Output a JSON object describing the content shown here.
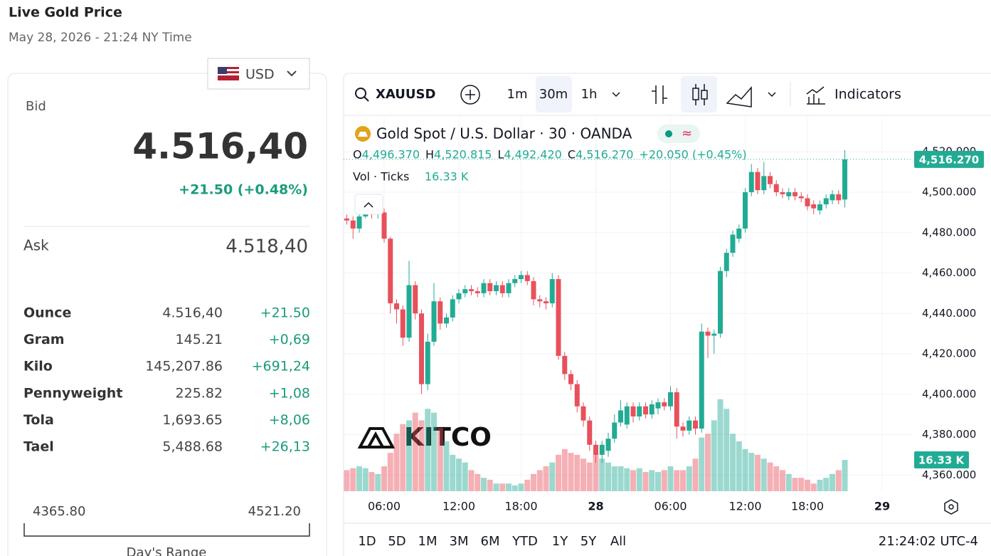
{
  "header": {
    "title": "Live Gold Price",
    "subtitle": "May 28, 2026 - 21:24 NY Time"
  },
  "panel": {
    "currency": "USD",
    "bid_label": "Bid",
    "bid": "4.516,40",
    "change": "+21.50 (+0.48%)",
    "ask_label": "Ask",
    "ask": "4.518,40",
    "rows": [
      [
        "Ounce",
        "4.516,40",
        "+21.50"
      ],
      [
        "Gram",
        "145.21",
        "+0,69"
      ],
      [
        "Kilo",
        "145,207.86",
        "+691,24"
      ],
      [
        "Pennyweight",
        "225.82",
        "+1,08"
      ],
      [
        "Tola",
        "1,693.65",
        "+8,06"
      ],
      [
        "Tael",
        "5,488.68",
        "+26,13"
      ]
    ],
    "range_low": "4365.80",
    "range_high": "4521.20",
    "range_label": "Day's Range"
  },
  "toolbar": {
    "symbol": "XAUUSD",
    "intervals": [
      "1m",
      "30m",
      "1h"
    ],
    "indicators": "Indicators"
  },
  "chart_data": {
    "type": "candlestick",
    "title": "Gold Spot / U.S. Dollar · 30 · OANDA",
    "ohlc_legend": [
      {
        "key": "O",
        "value": "4,496.370"
      },
      {
        "key": "H",
        "value": "4,520.815"
      },
      {
        "key": "L",
        "value": "4,492.420"
      },
      {
        "key": "C",
        "value": "4,516.270"
      }
    ],
    "change_label": "+20.050 (+0.45%)",
    "volume_title": "Vol · Ticks",
    "volume_label": "16.33 K",
    "watermark": "KITCO",
    "categories": [
      null,
      null,
      null,
      null,
      null,
      null,
      "06:00",
      null,
      null,
      null,
      null,
      null,
      null,
      null,
      null,
      null,
      null,
      null,
      "12:00",
      null,
      null,
      null,
      null,
      null,
      null,
      null,
      null,
      null,
      "18:00",
      null,
      null,
      null,
      null,
      null,
      null,
      null,
      null,
      null,
      null,
      null,
      "28",
      null,
      null,
      null,
      null,
      null,
      null,
      null,
      null,
      null,
      null,
      null,
      "06:00",
      null,
      null,
      null,
      null,
      null,
      null,
      null,
      null,
      null,
      null,
      null,
      "12:00",
      null,
      null,
      null,
      null,
      null,
      null,
      null,
      null,
      null,
      "18:00",
      null,
      null,
      null,
      null,
      null,
      null,
      null,
      null,
      null,
      null,
      null,
      "29"
    ],
    "open": [
      4487,
      4486,
      4482,
      4488,
      4490,
      4489,
      4490,
      4477,
      4445,
      4442,
      4428,
      4454,
      4440,
      4405,
      4426,
      4446,
      4435,
      4438,
      4447,
      4450,
      4452,
      4451,
      4450,
      4455,
      4451,
      4454,
      4450,
      4455,
      4457,
      4459,
      4456,
      4447,
      4446,
      4445,
      4457,
      4419,
      4410,
      4405,
      4394,
      4387,
      4375,
      4370,
      4372,
      4378,
      4386,
      4385,
      4394,
      4389,
      4394,
      4390,
      4393,
      4396,
      4394,
      4401,
      4384,
      4382,
      4387,
      4383,
      4431,
      4429,
      4430,
      4461,
      4470,
      4477,
      4482,
      4500,
      4510,
      4501,
      4508,
      4504,
      4500,
      4498,
      4500,
      4498,
      4497,
      4494,
      4491,
      4494,
      4496,
      4499,
      4496.37,
      null,
      null,
      null,
      null,
      null,
      null
    ],
    "high": [
      4489,
      4488,
      4490,
      4492,
      4492,
      4492,
      4492,
      4478,
      4447,
      4444,
      4466,
      4456,
      4442,
      4430,
      4455,
      4448,
      4440,
      4449,
      4452,
      4454,
      4454,
      4453,
      4457,
      4457,
      4456,
      4456,
      4457,
      4459,
      4461,
      4461,
      4458,
      4449,
      4448,
      4460,
      4459,
      4421,
      4412,
      4407,
      4396,
      4389,
      4377,
      4377,
      4381,
      4390,
      4397,
      4396,
      4396,
      4396,
      4396,
      4397,
      4398,
      4398,
      4404,
      4403,
      4386,
      4389,
      4389,
      4435,
      4433,
      4432,
      4463,
      4472,
      4481,
      4484,
      4502,
      4514,
      4512,
      4515,
      4510,
      4506,
      4502,
      4502,
      4502,
      4500,
      4499,
      4496,
      4496,
      4499,
      4501,
      4501,
      4520.815,
      null,
      null,
      null,
      null,
      null,
      null
    ],
    "low": [
      4484,
      4477,
      4480,
      4487,
      4487,
      4487,
      4475,
      4440,
      4435,
      4424,
      4426,
      4437,
      4400,
      4402,
      4424,
      4432,
      4433,
      4436,
      4445,
      4448,
      4449,
      4448,
      4448,
      4449,
      4449,
      4448,
      4448,
      4453,
      4455,
      4454,
      4444,
      4443,
      4442,
      4443,
      4417,
      4407,
      4402,
      4391,
      4384,
      4372,
      4366,
      4366,
      4369,
      4376,
      4384,
      4383,
      4386,
      4387,
      4388,
      4388,
      4390,
      4392,
      4392,
      4378,
      4379,
      4380,
      4380,
      4381,
      4418,
      4420,
      4428,
      4458,
      4468,
      4475,
      4480,
      4498,
      4499,
      4499,
      4502,
      4498,
      4497,
      4496,
      4496,
      4495,
      4491,
      4489,
      4489,
      4492,
      4494,
      4494,
      4492.42,
      null,
      null,
      null,
      null,
      null,
      null
    ],
    "close": [
      4486,
      4482,
      4488,
      4490,
      4489,
      4490,
      4477,
      4445,
      4442,
      4428,
      4454,
      4440,
      4405,
      4426,
      4446,
      4435,
      4438,
      4447,
      4450,
      4452,
      4451,
      4450,
      4455,
      4451,
      4454,
      4450,
      4455,
      4457,
      4459,
      4456,
      4447,
      4446,
      4445,
      4457,
      4419,
      4410,
      4405,
      4394,
      4387,
      4375,
      4370,
      4375,
      4378,
      4386,
      4392,
      4394,
      4389,
      4394,
      4390,
      4395,
      4396,
      4394,
      4401,
      4384,
      4382,
      4387,
      4383,
      4431,
      4429,
      4430,
      4461,
      4470,
      4479,
      4482,
      4500,
      4510,
      4501,
      4508,
      4504,
      4500,
      4499,
      4500,
      4498,
      4497,
      4493,
      4492,
      4494,
      4497,
      4499,
      4496,
      4516.27,
      null,
      null,
      null,
      null,
      null,
      null
    ],
    "volume": [
      11,
      12,
      13,
      12,
      10,
      9,
      13,
      20,
      30,
      35,
      37,
      41,
      37,
      43,
      41,
      33,
      26,
      19,
      17,
      15,
      11,
      9,
      7,
      6,
      4,
      4,
      4,
      3,
      4,
      6,
      9,
      11,
      13,
      15,
      19,
      22,
      20,
      19,
      17,
      15,
      19,
      17,
      15,
      13,
      13,
      12,
      11,
      12,
      10,
      11,
      10,
      11,
      13,
      11,
      11,
      13,
      17,
      28,
      30,
      37,
      48,
      43,
      30,
      26,
      22,
      20,
      19,
      17,
      15,
      13,
      11,
      9,
      7,
      7,
      6,
      4,
      6,
      7,
      9,
      11,
      16.33,
      null,
      null,
      null,
      null,
      null,
      null
    ],
    "ylim": [
      4352,
      4537
    ],
    "yticks": [
      {
        "value": 4360,
        "label": "4,360.000"
      },
      {
        "value": 4380,
        "label": "4,380.000"
      },
      {
        "value": 4400,
        "label": "4,400.000"
      },
      {
        "value": 4420,
        "label": "4,420.000"
      },
      {
        "value": 4440,
        "label": "4,440.000"
      },
      {
        "value": 4460,
        "label": "4,460.000"
      },
      {
        "value": 4480,
        "label": "4,480.000"
      },
      {
        "value": 4500,
        "label": "4,500.000"
      },
      {
        "value": 4520,
        "label": "4,520.000"
      }
    ],
    "y2lim": [
      0,
      195
    ],
    "up_color": "#22ab94",
    "down_color": "#e8505b",
    "grid": true
  },
  "ranges": [
    "1D",
    "5D",
    "1M",
    "3M",
    "6M",
    "YTD",
    "1Y",
    "5Y",
    "All"
  ],
  "clock": "21:24:02 UTC-4"
}
